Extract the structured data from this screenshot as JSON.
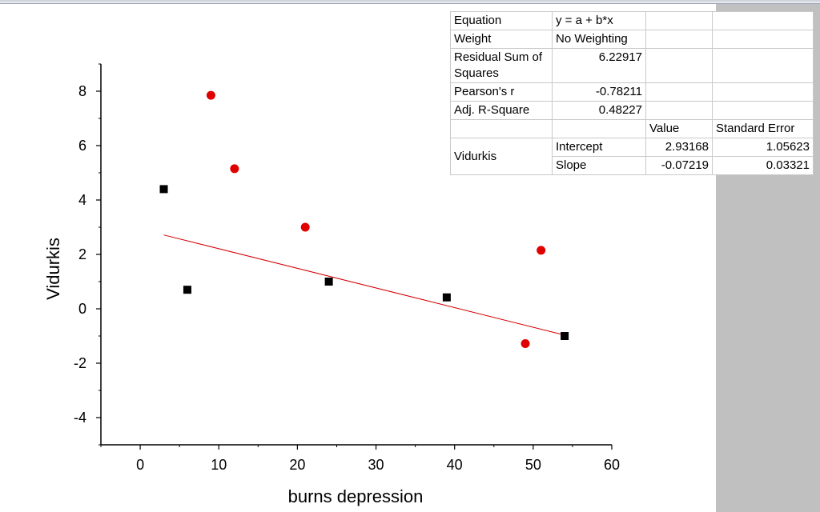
{
  "stats": {
    "equation_label": "Equation",
    "equation_value": "y = a + b*x",
    "weight_label": "Weight",
    "weight_value": "No Weighting",
    "rss_label": "Residual Sum of Squares",
    "rss_value": "6.22917",
    "pearson_label": "Pearson's r",
    "pearson_value": "-0.78211",
    "adjr2_label": "Adj. R-Square",
    "adjr2_value": "0.48227",
    "col_value": "Value",
    "col_se": "Standard Error",
    "group_label": "Vidurkis",
    "intercept_label": "Intercept",
    "intercept_value": "2.93168",
    "intercept_se": "1.05623",
    "slope_label": "Slope",
    "slope_value": "-0.07219",
    "slope_se": "0.03321"
  },
  "chart_data": {
    "type": "scatter",
    "title": "",
    "xlabel": "burns depression",
    "ylabel": "Vidurkis",
    "xlim": [
      -5,
      60
    ],
    "ylim": [
      -5,
      9
    ],
    "xticks": [
      0,
      10,
      20,
      30,
      40,
      50,
      60
    ],
    "yticks": [
      -4,
      -2,
      0,
      2,
      4,
      6,
      8
    ],
    "grid": false,
    "series": [
      {
        "marker": "square",
        "color": "#000000",
        "points": [
          [
            3,
            4.4
          ],
          [
            6,
            0.7
          ],
          [
            24,
            1.0
          ],
          [
            39,
            0.42
          ],
          [
            54,
            -1.0
          ]
        ]
      },
      {
        "marker": "circle",
        "color": "#e00000",
        "points": [
          [
            9,
            7.85
          ],
          [
            12,
            5.15
          ],
          [
            21,
            3.0
          ],
          [
            49,
            -1.28
          ],
          [
            51,
            2.15
          ]
        ]
      }
    ],
    "fit_line": {
      "color": "#d00000",
      "x_range": [
        3,
        54
      ],
      "intercept": 2.93168,
      "slope": -0.07219
    }
  }
}
